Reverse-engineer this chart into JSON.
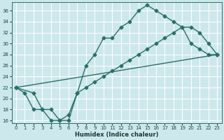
{
  "xlabel": "Humidex (Indice chaleur)",
  "bg_color": "#cde8ec",
  "grid_color": "#ffffff",
  "line_color": "#2a7068",
  "xlim": [
    -0.5,
    23.5
  ],
  "ylim": [
    15.5,
    37.5
  ],
  "xticks": [
    0,
    1,
    2,
    3,
    4,
    5,
    6,
    7,
    8,
    9,
    10,
    11,
    12,
    13,
    14,
    15,
    16,
    17,
    18,
    19,
    20,
    21,
    22,
    23
  ],
  "yticks": [
    16,
    18,
    20,
    22,
    24,
    26,
    28,
    30,
    32,
    34,
    36
  ],
  "line1_x": [
    0,
    1,
    2,
    3,
    4,
    5,
    6,
    7,
    8,
    9,
    10,
    11,
    12,
    13,
    14,
    15,
    16,
    17,
    18,
    19,
    20,
    21,
    22,
    23
  ],
  "line1_y": [
    22,
    21,
    18,
    18,
    16,
    16,
    17,
    21,
    26,
    28,
    31,
    31,
    33,
    34,
    36,
    37,
    36,
    35,
    34,
    33,
    30,
    29,
    28,
    28
  ],
  "line2_x": [
    0,
    23
  ],
  "line2_y": [
    22,
    28
  ],
  "line3_x": [
    0,
    2,
    3,
    4,
    5,
    6,
    7,
    8,
    9,
    10,
    11,
    12,
    13,
    14,
    15,
    16,
    17,
    18,
    19,
    20,
    21,
    22,
    23
  ],
  "line3_y": [
    22,
    21,
    18,
    18,
    16,
    16,
    21,
    22,
    23,
    24,
    25,
    26,
    27,
    28,
    29,
    30,
    31,
    32,
    33,
    33,
    32,
    30,
    28
  ]
}
